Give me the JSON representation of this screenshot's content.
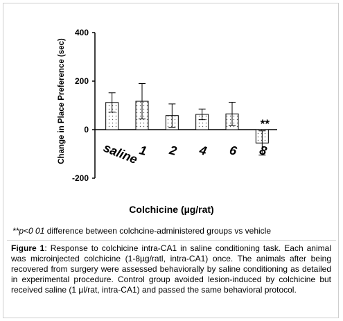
{
  "chart_data": {
    "type": "bar",
    "categories": [
      "saline",
      "1",
      "2",
      "4",
      "6",
      "8"
    ],
    "values": [
      112,
      117,
      58,
      63,
      65,
      -55
    ],
    "errors": [
      40,
      73,
      48,
      22,
      48,
      50
    ],
    "ylabel": "Change in Place Preference (sec)",
    "xlabel": "Colchicine (µg/rat)",
    "ylim": [
      -200,
      400
    ],
    "yticks": [
      -200,
      0,
      200,
      400
    ],
    "annotations": [
      {
        "category": "8",
        "text": "**"
      }
    ],
    "grid": false,
    "bar_fill": "dotted",
    "colors": {
      "bar_outline": "#000000",
      "dots": "#555555"
    }
  },
  "footnote": {
    "mark": "**p<0 01",
    "text": " difference between colchcine-administered groups vs vehicle"
  },
  "caption": {
    "label": "Figure 1",
    "text": ": Response to colchicine intra-CA1 in saline conditioning task. Each animal was microinjected colchicine (1-8µg/ratl, intra-CA1) once. The animals after being recovered from surgery were assessed behaviorally by saline conditioning as detailed in experimental procedure. Control group avoided lesion-induced by colchicine but received saline (1 µl/rat, intra-CA1) and passed the same behavioral protocol."
  }
}
